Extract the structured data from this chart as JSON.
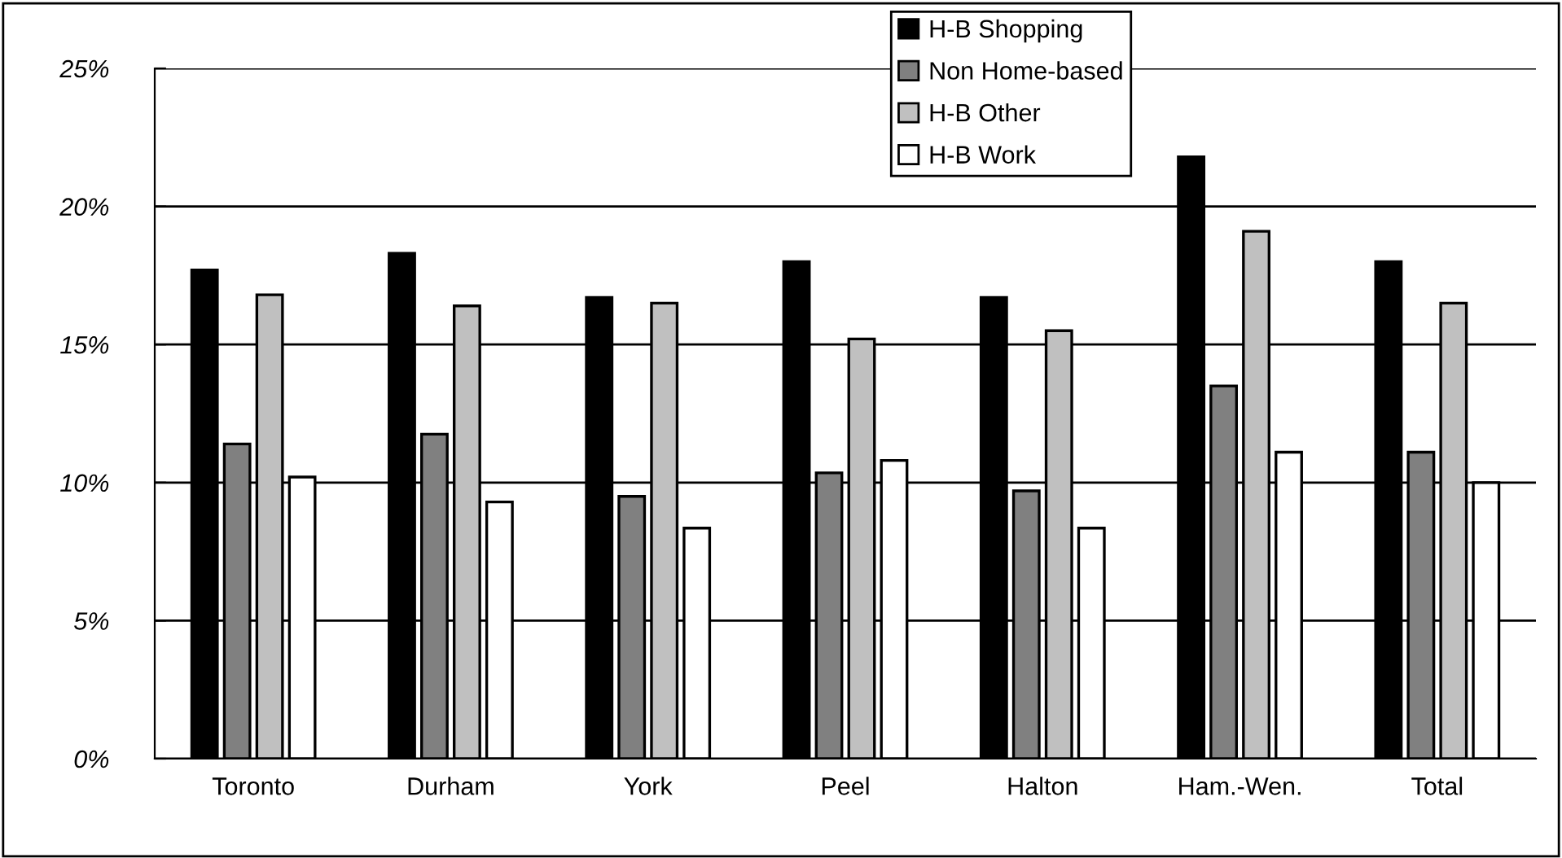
{
  "chart_data": {
    "type": "bar",
    "categories": [
      "Toronto",
      "Durham",
      "York",
      "Peel",
      "Halton",
      "Ham.-Wen.",
      "Total"
    ],
    "series": [
      {
        "name": "H-B Shopping",
        "color": "#000000",
        "values": [
          17.7,
          18.3,
          16.7,
          18.0,
          16.7,
          21.8,
          18.0
        ]
      },
      {
        "name": "Non Home-based",
        "color": "#808080",
        "values": [
          11.4,
          11.75,
          9.5,
          10.35,
          9.7,
          13.5,
          11.1
        ]
      },
      {
        "name": "H-B Other",
        "color": "#c0c0c0",
        "values": [
          16.8,
          16.4,
          16.5,
          15.2,
          15.5,
          19.1,
          16.5
        ]
      },
      {
        "name": "H-B Work",
        "color": "#ffffff",
        "values": [
          10.2,
          9.3,
          8.35,
          10.8,
          8.35,
          11.1,
          10.0
        ]
      }
    ],
    "ylim": [
      0,
      25
    ],
    "yticks": [
      {
        "value": 0,
        "label": "0%"
      },
      {
        "value": 5,
        "label": "5%"
      },
      {
        "value": 10,
        "label": "10%"
      },
      {
        "value": 15,
        "label": "15%"
      },
      {
        "value": 20,
        "label": "20%"
      },
      {
        "value": 25,
        "label": "25%"
      }
    ],
    "grid": "y",
    "legend": "top"
  }
}
